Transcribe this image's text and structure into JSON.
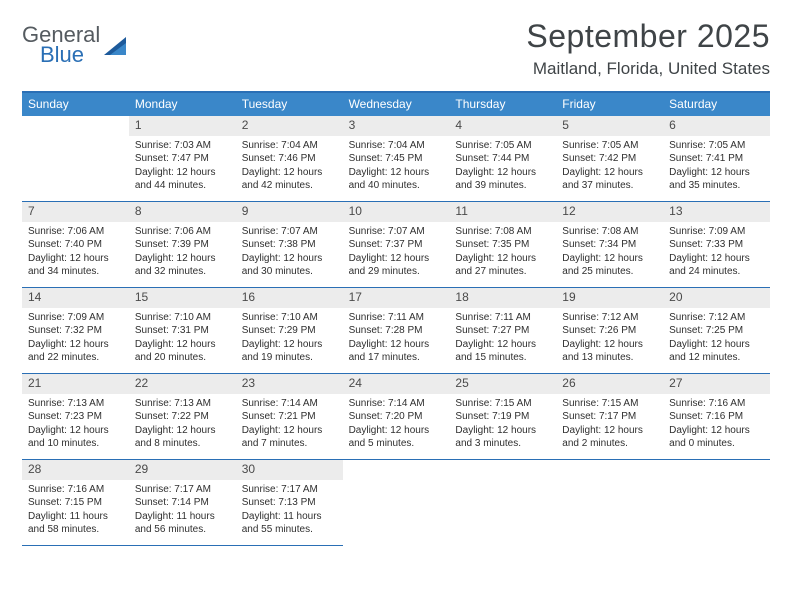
{
  "logo": {
    "general": "General",
    "blue": "Blue"
  },
  "title": "September 2025",
  "location": "Maitland, Florida, United States",
  "weekdays": [
    "Sunday",
    "Monday",
    "Tuesday",
    "Wednesday",
    "Thursday",
    "Friday",
    "Saturday"
  ],
  "colors": {
    "brand_blue": "#2a6fb5",
    "header_blue": "#3a87c9",
    "gray_band": "#ececec",
    "text": "#2f2f2f"
  },
  "grid": {
    "cols": 7,
    "rows": 5,
    "first_weekday_offset": 1,
    "days_in_month": 30
  },
  "days": [
    {
      "n": 1,
      "sr": "7:03 AM",
      "ss": "7:47 PM",
      "dl": "12 hours and 44 minutes."
    },
    {
      "n": 2,
      "sr": "7:04 AM",
      "ss": "7:46 PM",
      "dl": "12 hours and 42 minutes."
    },
    {
      "n": 3,
      "sr": "7:04 AM",
      "ss": "7:45 PM",
      "dl": "12 hours and 40 minutes."
    },
    {
      "n": 4,
      "sr": "7:05 AM",
      "ss": "7:44 PM",
      "dl": "12 hours and 39 minutes."
    },
    {
      "n": 5,
      "sr": "7:05 AM",
      "ss": "7:42 PM",
      "dl": "12 hours and 37 minutes."
    },
    {
      "n": 6,
      "sr": "7:05 AM",
      "ss": "7:41 PM",
      "dl": "12 hours and 35 minutes."
    },
    {
      "n": 7,
      "sr": "7:06 AM",
      "ss": "7:40 PM",
      "dl": "12 hours and 34 minutes."
    },
    {
      "n": 8,
      "sr": "7:06 AM",
      "ss": "7:39 PM",
      "dl": "12 hours and 32 minutes."
    },
    {
      "n": 9,
      "sr": "7:07 AM",
      "ss": "7:38 PM",
      "dl": "12 hours and 30 minutes."
    },
    {
      "n": 10,
      "sr": "7:07 AM",
      "ss": "7:37 PM",
      "dl": "12 hours and 29 minutes."
    },
    {
      "n": 11,
      "sr": "7:08 AM",
      "ss": "7:35 PM",
      "dl": "12 hours and 27 minutes."
    },
    {
      "n": 12,
      "sr": "7:08 AM",
      "ss": "7:34 PM",
      "dl": "12 hours and 25 minutes."
    },
    {
      "n": 13,
      "sr": "7:09 AM",
      "ss": "7:33 PM",
      "dl": "12 hours and 24 minutes."
    },
    {
      "n": 14,
      "sr": "7:09 AM",
      "ss": "7:32 PM",
      "dl": "12 hours and 22 minutes."
    },
    {
      "n": 15,
      "sr": "7:10 AM",
      "ss": "7:31 PM",
      "dl": "12 hours and 20 minutes."
    },
    {
      "n": 16,
      "sr": "7:10 AM",
      "ss": "7:29 PM",
      "dl": "12 hours and 19 minutes."
    },
    {
      "n": 17,
      "sr": "7:11 AM",
      "ss": "7:28 PM",
      "dl": "12 hours and 17 minutes."
    },
    {
      "n": 18,
      "sr": "7:11 AM",
      "ss": "7:27 PM",
      "dl": "12 hours and 15 minutes."
    },
    {
      "n": 19,
      "sr": "7:12 AM",
      "ss": "7:26 PM",
      "dl": "12 hours and 13 minutes."
    },
    {
      "n": 20,
      "sr": "7:12 AM",
      "ss": "7:25 PM",
      "dl": "12 hours and 12 minutes."
    },
    {
      "n": 21,
      "sr": "7:13 AM",
      "ss": "7:23 PM",
      "dl": "12 hours and 10 minutes."
    },
    {
      "n": 22,
      "sr": "7:13 AM",
      "ss": "7:22 PM",
      "dl": "12 hours and 8 minutes."
    },
    {
      "n": 23,
      "sr": "7:14 AM",
      "ss": "7:21 PM",
      "dl": "12 hours and 7 minutes."
    },
    {
      "n": 24,
      "sr": "7:14 AM",
      "ss": "7:20 PM",
      "dl": "12 hours and 5 minutes."
    },
    {
      "n": 25,
      "sr": "7:15 AM",
      "ss": "7:19 PM",
      "dl": "12 hours and 3 minutes."
    },
    {
      "n": 26,
      "sr": "7:15 AM",
      "ss": "7:17 PM",
      "dl": "12 hours and 2 minutes."
    },
    {
      "n": 27,
      "sr": "7:16 AM",
      "ss": "7:16 PM",
      "dl": "12 hours and 0 minutes."
    },
    {
      "n": 28,
      "sr": "7:16 AM",
      "ss": "7:15 PM",
      "dl": "11 hours and 58 minutes."
    },
    {
      "n": 29,
      "sr": "7:17 AM",
      "ss": "7:14 PM",
      "dl": "11 hours and 56 minutes."
    },
    {
      "n": 30,
      "sr": "7:17 AM",
      "ss": "7:13 PM",
      "dl": "11 hours and 55 minutes."
    }
  ],
  "labels": {
    "sunrise": "Sunrise:",
    "sunset": "Sunset:",
    "daylight": "Daylight:"
  }
}
